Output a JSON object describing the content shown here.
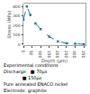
{
  "chart_data": {
    "type": "line",
    "xlabel": "Depth (μm)",
    "ylabel": "Stress (MPa)",
    "x": [
      0,
      20,
      40,
      70,
      100,
      150,
      200,
      250,
      300,
      350
    ],
    "series": [
      {
        "values": [
          260,
          400,
          310,
          220,
          160,
          80,
          30,
          10,
          5,
          0
        ],
        "marker": "square",
        "line_style": "dashed"
      }
    ],
    "xlim": [
      0,
      360
    ],
    "ylim": [
      -10,
      430
    ],
    "xticks": [
      0,
      50,
      100,
      150,
      200,
      250,
      300,
      350
    ],
    "yticks": [
      0,
      100,
      200,
      300,
      400
    ],
    "grid": false,
    "annotations": [
      "Experimental conditions",
      "Discharge   ■ 70μs",
      "             ■ 150μs",
      "Pure annealed ENACO nickel",
      "Electrode: graphite"
    ]
  }
}
